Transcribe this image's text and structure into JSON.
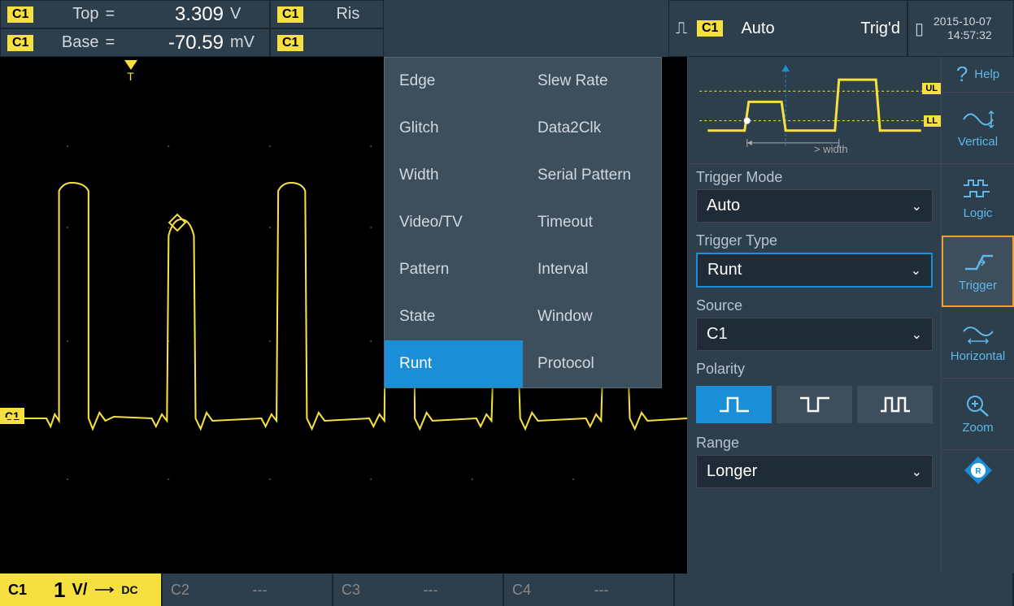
{
  "measurements": {
    "top": {
      "channel": "C1",
      "label": "Top",
      "value": "3.309",
      "unit": "V"
    },
    "base": {
      "channel": "C1",
      "label": "Base",
      "value": "-70.59",
      "unit": "mV"
    },
    "rise": {
      "channel": "C1",
      "label": "Ris"
    },
    "fall": {
      "channel": "C1",
      "label": ""
    }
  },
  "status": {
    "channel": "C1",
    "mode": "Auto",
    "state": "Trig'd",
    "date": "2015-10-07",
    "time": "14:57:32"
  },
  "trigger_menu": {
    "items_col1": [
      "Edge",
      "Glitch",
      "Width",
      "Video/TV",
      "Pattern",
      "State",
      "Runt"
    ],
    "items_col2": [
      "Slew Rate",
      "Data2Clk",
      "Serial Pattern",
      "Timeout",
      "Interval",
      "Window",
      "Protocol"
    ],
    "selected": "Runt"
  },
  "trigger_settings": {
    "diagram": {
      "ul": "UL",
      "ll": "LL",
      "width_label": "> width"
    },
    "mode": {
      "label": "Trigger Mode",
      "value": "Auto"
    },
    "type": {
      "label": "Trigger Type",
      "value": "Runt"
    },
    "source": {
      "label": "Source",
      "value": "C1"
    },
    "polarity": {
      "label": "Polarity",
      "active": 0
    },
    "range": {
      "label": "Range",
      "value": "Longer"
    }
  },
  "sidebar": {
    "help": "Help",
    "vertical": "Vertical",
    "logic": "Logic",
    "trigger": "Trigger",
    "horizontal": "Horizontal",
    "zoom": "Zoom"
  },
  "channels": {
    "c1": {
      "badge": "C1",
      "value": "1",
      "vdiv": "V/",
      "coupling": "DC"
    },
    "c2": {
      "badge": "C2",
      "value": "---"
    },
    "c3": {
      "badge": "C3",
      "value": "---"
    },
    "c4": {
      "badge": "C4",
      "value": "---"
    }
  },
  "waveform": {
    "color": "#f5e040",
    "ch_marker": "C1",
    "trigger_label": "T"
  },
  "colors": {
    "accent_yellow": "#f5e040",
    "accent_blue": "#1a8fd8",
    "accent_orange": "#f0a030",
    "panel_bg": "#2d3e4d",
    "dark_bg": "#1f2b36"
  }
}
